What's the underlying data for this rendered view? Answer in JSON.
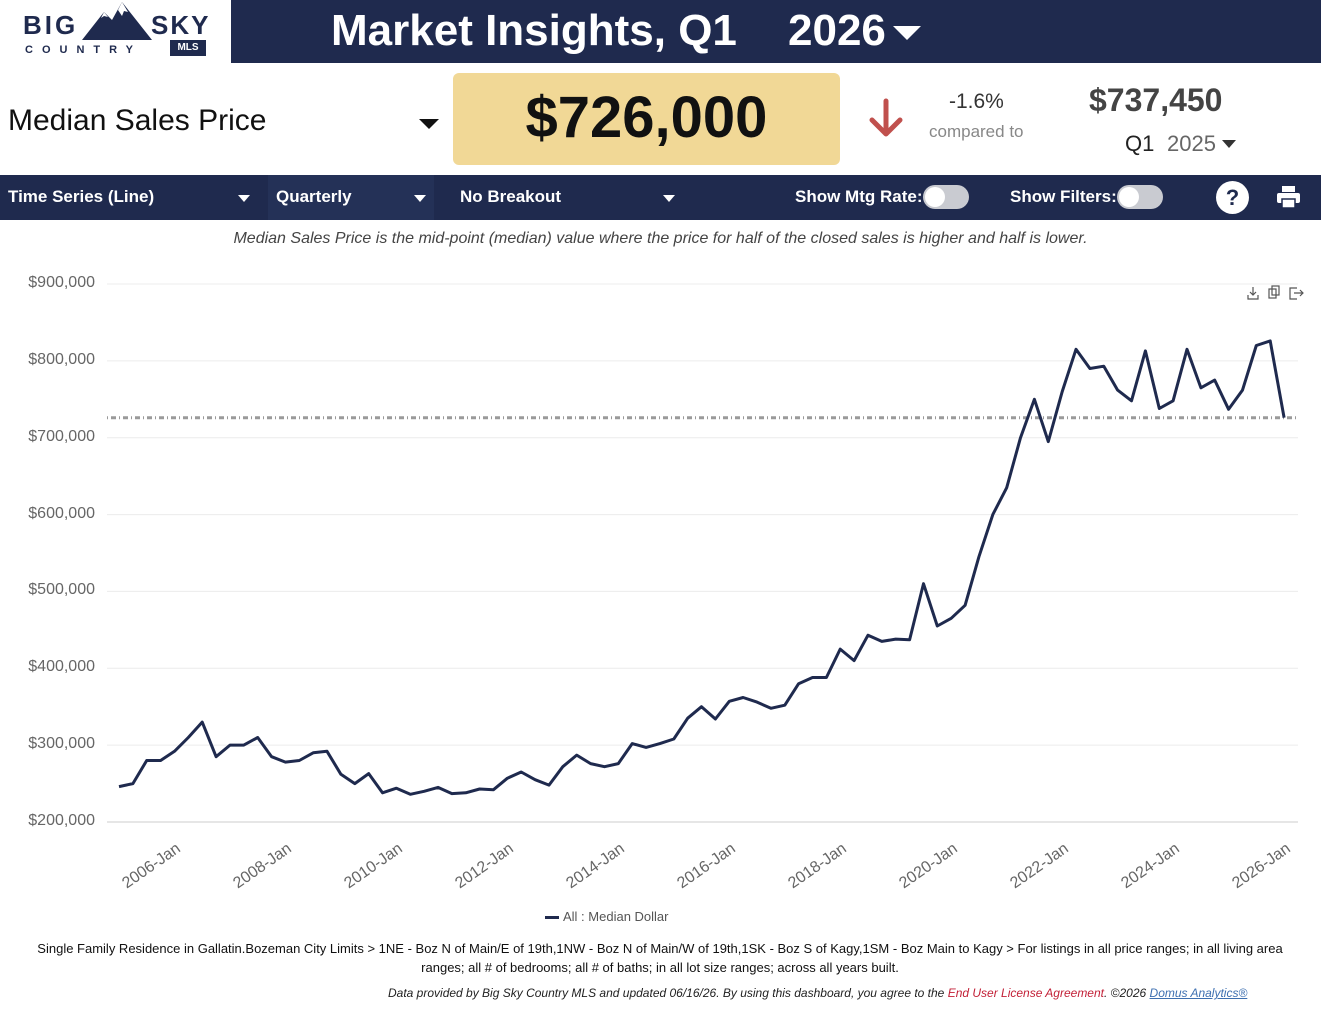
{
  "logo": {
    "big": "BIG",
    "sky": "SKY",
    "country": "COUNTRY",
    "mls": "MLS"
  },
  "header": {
    "title": "Market Insights,  Q1",
    "year": "2026"
  },
  "metric": {
    "name": "Median Sales Price",
    "value": "$726,000"
  },
  "comparison": {
    "change": "-1.6%",
    "compared_label": "compared to",
    "prev_value": "$737,450",
    "prev_quarter": "Q1",
    "prev_year": "2025"
  },
  "toolbar": {
    "chart_type": "Time Series (Line)",
    "period": "Quarterly",
    "breakout": "No Breakout",
    "mtg_rate_label": "Show Mtg Rate:",
    "filters_label": "Show Filters:",
    "help": "?"
  },
  "description": "Median Sales Price is the mid-point (median) value where the price for half of the closed sales is higher and half is lower.",
  "colors": {
    "navy": "#1f2a4e",
    "value_box": "#f1d896",
    "down_arrow": "#c0504d"
  },
  "chart_data": {
    "type": "line",
    "y_tick_labels": [
      "$900,000",
      "$800,000",
      "$700,000",
      "$600,000",
      "$500,000",
      "$400,000",
      "$300,000",
      "$200,000"
    ],
    "x_tick_labels": [
      "2006-Jan",
      "2008-Jan",
      "2010-Jan",
      "2012-Jan",
      "2014-Jan",
      "2016-Jan",
      "2018-Jan",
      "2020-Jan",
      "2022-Jan",
      "2024-Jan",
      "2026-Jan"
    ],
    "ylim": [
      200000,
      900000
    ],
    "x_start": "2005-Q1",
    "reference_line": 726000,
    "legend": "All : Median Dollar",
    "series": [
      {
        "name": "All : Median Dollar",
        "color": "#1f2a4e",
        "values": [
          246000,
          250000,
          280000,
          280000,
          292000,
          310000,
          330000,
          285000,
          300000,
          300000,
          310000,
          285000,
          278000,
          280000,
          290000,
          292000,
          262000,
          250000,
          263000,
          238000,
          244000,
          236000,
          240000,
          245000,
          237000,
          238000,
          243000,
          242000,
          257000,
          265000,
          255000,
          248000,
          272000,
          287000,
          276000,
          272000,
          276000,
          302000,
          297000,
          302000,
          308000,
          335000,
          350000,
          334000,
          357000,
          362000,
          356000,
          348000,
          352000,
          380000,
          388000,
          388000,
          425000,
          410000,
          443000,
          435000,
          438000,
          437000,
          510000,
          455000,
          465000,
          482000,
          545000,
          600000,
          635000,
          700000,
          750000,
          695000,
          760000,
          815000,
          790000,
          793000,
          762000,
          748000,
          813000,
          738000,
          748000,
          815000,
          765000,
          775000,
          737000,
          762000,
          820000,
          826000,
          726000
        ]
      }
    ]
  },
  "footer": {
    "filter_text": "Single Family Residence in Gallatin.Bozeman City Limits > 1NE - Boz N of Main/E of 19th,1NW - Boz N of Main/W of 19th,1SK - Boz S of Kagy,1SM - Boz Main to Kagy > For listings in all price ranges; in all living area ranges; all # of bedrooms; all # of baths; in all lot size ranges; across all years built.",
    "data_text": "Data provided by Big Sky Country MLS and updated 06/16/26.  By using this dashboard, you agree to the ",
    "eula": "End User License Agreement",
    "copyright": ".  ©2026 ",
    "domus": "Domus Analytics®"
  }
}
